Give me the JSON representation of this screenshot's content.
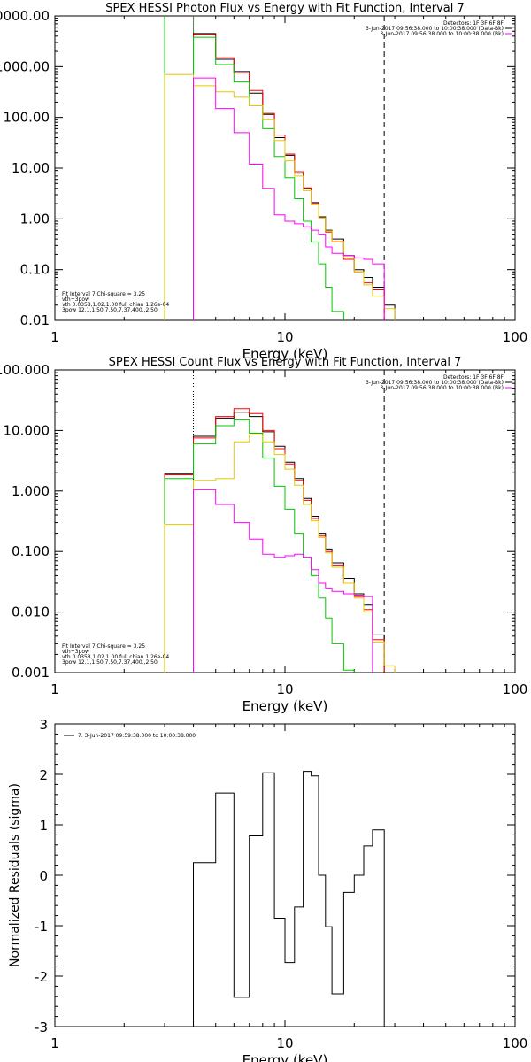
{
  "chart_data": [
    {
      "type": "line",
      "title": "SPEX HESSI Photon Flux vs Energy with Fit Function, Interval 7",
      "xlabel": "Energy (keV)",
      "ylabel": "",
      "xscale": "log",
      "yscale": "log",
      "xlim": [
        1,
        100
      ],
      "ylim": [
        0.01,
        10000
      ],
      "x_ticks": [
        "1",
        "10",
        "100"
      ],
      "y_ticks": [
        "0.01",
        "0.10",
        "1.00",
        "10.00",
        "100.00",
        "1000.00",
        "10000.00"
      ],
      "info_lines": [
        "Detectors: 1F 3F 6F 8F",
        "3-Jun-2017 09:56:38.000 to 10:00:38.000 (Data-Bk)",
        "3-Jun-2017 09:56:38.000 to 10:00:38.000 (Bk)"
      ],
      "legend_lines": [
        {
          "text": "Fit Interval 7   Chi-square = 3.25",
          "color": "#000000"
        },
        {
          "text": "vth+3pow",
          "color": "#ff0000"
        },
        {
          "text": "vth 0.0358,1.02,1.00  full chian 1.26e-04",
          "color": "#00c800"
        },
        {
          "text": "3pow 12.1,1.50,7.50,7.37,400.,2.50",
          "color": "#e6c800"
        }
      ],
      "vlines": [
        {
          "x": 3.0,
          "color": "#00c800",
          "style": "solid"
        },
        {
          "x": 4.0,
          "color": "#00c800",
          "style": "solid"
        },
        {
          "x": 4.0,
          "color": "#ff00ff",
          "style": "dotted"
        },
        {
          "x": 27.0,
          "color": "#000000",
          "style": "dashed"
        }
      ],
      "edges": [
        3.0,
        4.0,
        5.0,
        6.0,
        7.0,
        8.0,
        9.0,
        10.0,
        11.0,
        12.0,
        13.0,
        14.0,
        15.0,
        16.0,
        18.0,
        20.0,
        22.0,
        24.0,
        27.0,
        30.0
      ],
      "series": [
        {
          "color": "#000000",
          "values": [
            null,
            4500,
            1400,
            800,
            300,
            115,
            40,
            18,
            8,
            4,
            2.1,
            1.1,
            0.6,
            0.4,
            0.19,
            0.1,
            0.07,
            0.045,
            0.02
          ]
        },
        {
          "color": "#ff0000",
          "values": [
            null,
            4300,
            1500,
            750,
            340,
            120,
            45,
            19,
            8.5,
            4.1,
            2.0,
            1.05,
            0.55,
            0.35,
            0.16,
            0.09,
            0.055,
            0.04,
            null
          ]
        },
        {
          "color": "#00c800",
          "values": [
            null,
            3800,
            1100,
            500,
            170,
            60,
            17,
            6.5,
            2.5,
            0.9,
            0.35,
            0.13,
            0.045,
            0.015,
            0.003,
            null,
            null,
            null,
            null
          ]
        },
        {
          "color": "#e6c800",
          "values": [
            700,
            420,
            320,
            250,
            170,
            90,
            35,
            14,
            7,
            3.6,
            1.9,
            1.05,
            0.58,
            0.36,
            0.17,
            0.09,
            0.05,
            0.03,
            0.017
          ]
        },
        {
          "color": "#ff00ff",
          "values": [
            null,
            600,
            150,
            50,
            12,
            4,
            1.2,
            0.9,
            0.8,
            0.7,
            0.6,
            0.5,
            0.28,
            0.21,
            0.19,
            0.17,
            0.16,
            0.13,
            null
          ]
        }
      ]
    },
    {
      "type": "line",
      "title": "SPEX HESSI Count Flux vs Energy with Fit Function, Interval 7",
      "xlabel": "Energy (keV)",
      "ylabel": "",
      "xscale": "log",
      "yscale": "log",
      "xlim": [
        1,
        100
      ],
      "ylim": [
        0.001,
        100
      ],
      "x_ticks": [
        "1",
        "10",
        "100"
      ],
      "y_ticks": [
        "0.001",
        "0.010",
        "0.100",
        "1.000",
        "10.000",
        "100.000"
      ],
      "info_lines": [
        "Detectors: 1F 3F 6F 8F",
        "3-Jun-2017 09:56:38.000 to 10:00:38.000 (Data-Bk)",
        "3-Jun-2017 09:56:38.000 to 10:00:38.000 (Bk)"
      ],
      "legend_lines": [
        {
          "text": "Fit Interval 7   Chi-square = 3.25",
          "color": "#000000"
        },
        {
          "text": "vth+3pow",
          "color": "#ff0000"
        },
        {
          "text": "vth 0.0358,1.02,1.00  full chian 1.26e-04",
          "color": "#00c800"
        },
        {
          "text": "3pow 12.1,1.50,7.50,7.37,400.,2.50",
          "color": "#e6c800"
        }
      ],
      "vlines": [
        {
          "x": 4.0,
          "color": "#000000",
          "style": "dotted"
        },
        {
          "x": 27.0,
          "color": "#000000",
          "style": "dashed"
        }
      ],
      "edges": [
        3.0,
        4.0,
        5.0,
        6.0,
        7.0,
        8.0,
        9.0,
        10.0,
        11.0,
        12.0,
        13.0,
        14.0,
        15.0,
        16.0,
        18.0,
        20.0,
        22.0,
        24.0,
        27.0,
        30.0
      ],
      "series": [
        {
          "color": "#000000",
          "values": [
            1.9,
            8.0,
            16,
            20,
            17,
            9.5,
            5.5,
            3.0,
            1.6,
            0.75,
            0.38,
            0.2,
            0.11,
            0.065,
            0.036,
            0.02,
            0.013,
            0.0042,
            null
          ]
        },
        {
          "color": "#ff0000",
          "values": [
            1.85,
            7.5,
            17,
            23,
            19,
            10,
            5.0,
            2.8,
            1.5,
            0.7,
            0.35,
            0.18,
            0.1,
            0.06,
            0.03,
            0.018,
            0.011,
            0.0035,
            null
          ]
        },
        {
          "color": "#00c800",
          "values": [
            1.6,
            6.0,
            12,
            15,
            9,
            3.5,
            1.2,
            0.5,
            0.2,
            0.08,
            0.04,
            0.017,
            0.008,
            0.003,
            0.0011,
            null,
            null,
            null,
            null
          ]
        },
        {
          "color": "#e6c800",
          "values": [
            0.28,
            1.5,
            1.6,
            6.5,
            8.5,
            6.5,
            4.0,
            2.3,
            1.25,
            0.6,
            0.32,
            0.17,
            0.095,
            0.055,
            0.03,
            0.017,
            0.01,
            0.0032,
            0.0013
          ]
        },
        {
          "color": "#ff00ff",
          "values": [
            null,
            1.05,
            0.6,
            0.3,
            0.16,
            0.09,
            0.08,
            0.085,
            0.09,
            0.08,
            0.05,
            0.03,
            0.025,
            0.022,
            0.02,
            0.019,
            0.018,
            null,
            null
          ]
        }
      ]
    },
    {
      "type": "line",
      "title": "",
      "xlabel": "Energy (keV)",
      "ylabel": "Normalized Residuals (sigma)",
      "xscale": "log",
      "yscale": "linear",
      "xlim": [
        1,
        100
      ],
      "ylim": [
        -3,
        3
      ],
      "x_ticks": [
        "1",
        "10",
        "100"
      ],
      "y_ticks": [
        "-3",
        "-2",
        "-1",
        "0",
        "1",
        "2",
        "3"
      ],
      "legend_lines": [
        {
          "text": "7.  3-Jun-2017 09:59:38.000 to 10:00:38.000",
          "color": "#000000"
        }
      ],
      "edges": [
        4.0,
        5.0,
        6.0,
        7.0,
        8.0,
        9.0,
        10.0,
        11.0,
        12.0,
        13.0,
        14.0,
        15.0,
        16.0,
        18.0,
        20.0,
        22.0,
        24.0,
        27.0
      ],
      "series": [
        {
          "color": "#000000",
          "values": [
            0.25,
            1.63,
            -2.42,
            0.78,
            2.03,
            -0.85,
            -1.73,
            -0.63,
            2.06,
            1.97,
            0.0,
            -1.02,
            -2.35,
            -0.34,
            0.0,
            0.58,
            0.9
          ]
        }
      ]
    }
  ]
}
